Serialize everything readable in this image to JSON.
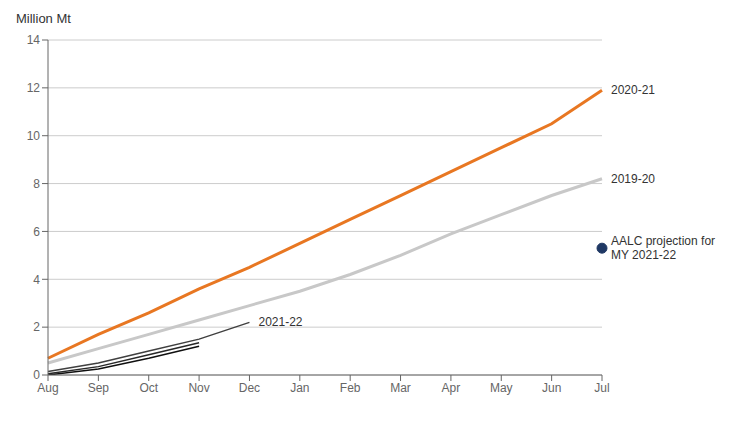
{
  "chart_data": {
    "type": "line",
    "title": "Million Mt",
    "categories": [
      "Aug",
      "Sep",
      "Oct",
      "Nov",
      "Dec",
      "Jan",
      "Feb",
      "Mar",
      "Apr",
      "May",
      "Jun",
      "Jul"
    ],
    "ylim": [
      0,
      14
    ],
    "yticks": [
      0,
      2,
      4,
      6,
      8,
      10,
      12,
      14
    ],
    "grid": true,
    "series": [
      {
        "name": "2019-20",
        "color": "#C8C8C8",
        "values": [
          0.5,
          1.1,
          1.7,
          2.3,
          2.9,
          3.5,
          4.2,
          5.0,
          5.9,
          6.7,
          7.5,
          8.2
        ]
      },
      {
        "name": "2020-21",
        "color": "#E87722",
        "values": [
          0.7,
          1.7,
          2.6,
          3.6,
          4.5,
          5.5,
          6.5,
          7.5,
          8.5,
          9.5,
          10.5,
          11.9
        ]
      },
      {
        "name": "2021-22",
        "color": "#404040",
        "values": [
          0.15,
          0.5,
          1.0,
          1.5,
          2.2,
          null,
          null,
          null,
          null,
          null,
          null,
          null
        ]
      },
      {
        "color": "#282828",
        "values": [
          0.05,
          0.35,
          0.85,
          1.35,
          null,
          null,
          null,
          null,
          null,
          null,
          null,
          null
        ]
      },
      {
        "color": "#101010",
        "values": [
          0.0,
          0.25,
          0.7,
          1.2,
          null,
          null,
          null,
          null,
          null,
          null,
          null,
          null
        ]
      },
      {
        "name": "AALC projection for\nMY 2021-22",
        "type": "scatter",
        "color": "#1F3864",
        "values": [
          null,
          null,
          null,
          null,
          null,
          null,
          null,
          null,
          null,
          null,
          null,
          5.3
        ]
      }
    ]
  }
}
